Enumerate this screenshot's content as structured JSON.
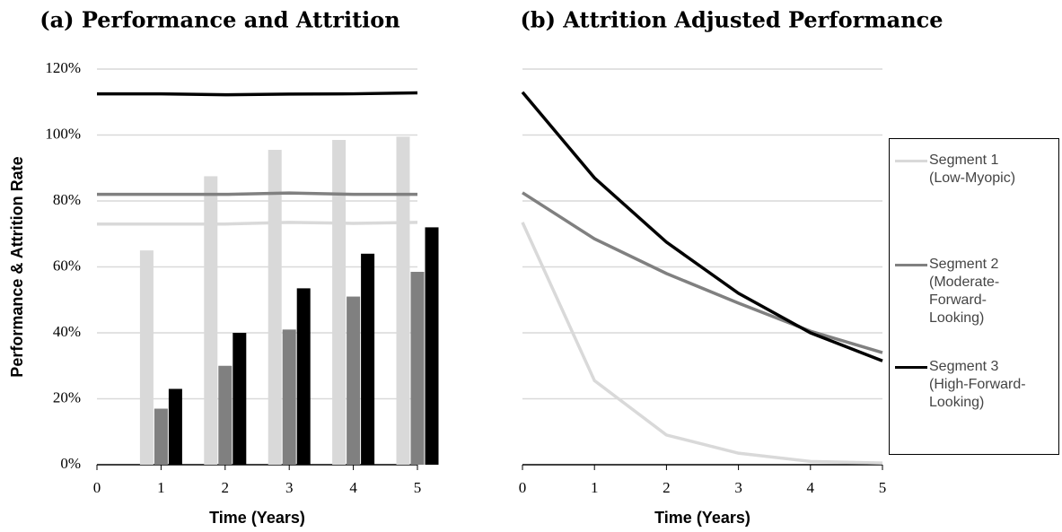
{
  "chart_data": [
    {
      "type": "bar-line",
      "title": "(a) Performance and Attrition",
      "xlabel": "Time (Years)",
      "ylabel": "Performance & Attrition Rate",
      "x": [
        0,
        1,
        2,
        3,
        4,
        5
      ],
      "xlim": [
        0,
        5
      ],
      "xticks": [
        0,
        1,
        2,
        3,
        4,
        5
      ],
      "ylim": [
        0,
        120
      ],
      "yticks": [
        {
          "value": 0,
          "label": "0%"
        },
        {
          "value": 20,
          "label": "20%"
        },
        {
          "value": 40,
          "label": "40%"
        },
        {
          "value": 60,
          "label": "60%"
        },
        {
          "value": 80,
          "label": "80%"
        },
        {
          "value": 100,
          "label": "100%"
        },
        {
          "value": 120,
          "label": "120%"
        }
      ],
      "grid": true,
      "series": [
        {
          "color": "#d9d9d9",
          "values": [
            73,
            73,
            73,
            73.5,
            73.2,
            73.5
          ],
          "bar_values": [
            null,
            65,
            87.5,
            95.5,
            98.5,
            99.5
          ]
        },
        {
          "color": "#808080",
          "values": [
            82,
            82,
            82,
            82.4,
            82,
            82
          ],
          "bar_values": [
            null,
            17,
            30,
            41,
            51,
            58.5
          ]
        },
        {
          "color": "#000000",
          "values": [
            112.5,
            112.5,
            112.2,
            112.4,
            112.5,
            112.8
          ],
          "bar_values": [
            null,
            23,
            40,
            53.5,
            64,
            72
          ]
        }
      ]
    },
    {
      "type": "line",
      "title": "(b) Attrition Adjusted Performance",
      "xlabel": "Time (Years)",
      "x": [
        0,
        1,
        2,
        3,
        4,
        5
      ],
      "xlim": [
        0,
        5
      ],
      "xticks": [
        0,
        1,
        2,
        3,
        4,
        5
      ],
      "ylim": [
        0,
        120
      ],
      "yticks": [
        0,
        20,
        40,
        60,
        80,
        100,
        120
      ],
      "grid": true,
      "series": [
        {
          "name": "Segment 1 (Low-Myopic)",
          "color": "#d9d9d9",
          "values": [
            73.5,
            25.5,
            9,
            3.5,
            1,
            0.5
          ]
        },
        {
          "name": "Segment 2 (Moderate-Forward-Looking)",
          "color": "#808080",
          "values": [
            82.5,
            68.5,
            58,
            49,
            40.5,
            34
          ]
        },
        {
          "name": "Segment 3 (High-Forward-Looking)",
          "color": "#000000",
          "values": [
            113,
            87,
            67.5,
            52,
            40,
            31.5
          ]
        }
      ]
    }
  ]
}
